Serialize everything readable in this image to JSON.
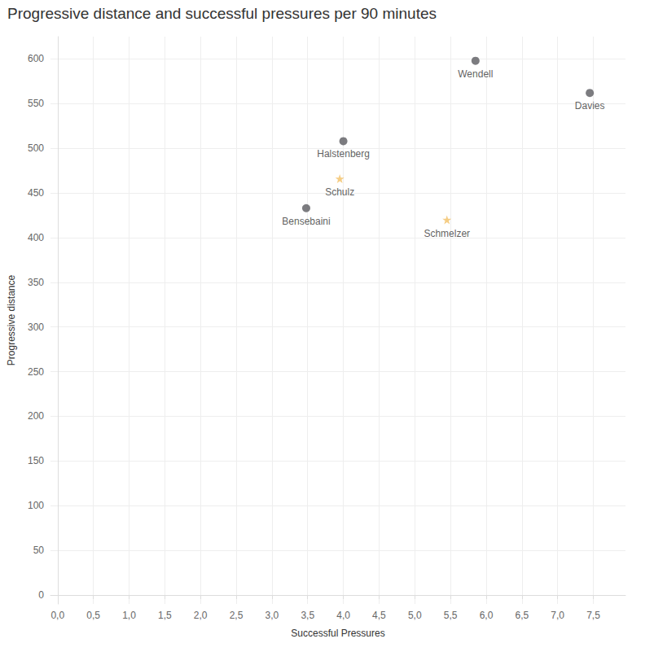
{
  "chart_data": {
    "type": "scatter",
    "title": "Progressive distance and successful pressures per 90 minutes",
    "x_label": "Successful Pressures",
    "y_label": "Progressive distance",
    "xlim": [
      -0.1,
      7.95
    ],
    "xticks": [
      {
        "value": 0,
        "label": "0,0"
      },
      {
        "value": 0.5,
        "label": "0,5"
      },
      {
        "value": 1,
        "label": "1,0"
      },
      {
        "value": 1.5,
        "label": "1,5"
      },
      {
        "value": 2,
        "label": "2,0"
      },
      {
        "value": 2.5,
        "label": "2,5"
      },
      {
        "value": 3,
        "label": "3,0"
      },
      {
        "value": 3.5,
        "label": "3,5"
      },
      {
        "value": 4,
        "label": "4,0"
      },
      {
        "value": 4.5,
        "label": "4,5"
      },
      {
        "value": 5,
        "label": "5,0"
      },
      {
        "value": 5.5,
        "label": "5,5"
      },
      {
        "value": 6,
        "label": "6,0"
      },
      {
        "value": 6.5,
        "label": "6,5"
      },
      {
        "value": 7,
        "label": "7,0"
      },
      {
        "value": 7.5,
        "label": "7,5"
      }
    ],
    "ylim": [
      -10,
      625
    ],
    "yticks": [
      0,
      50,
      100,
      150,
      200,
      250,
      300,
      350,
      400,
      450,
      500,
      550,
      600
    ],
    "grid": true,
    "series": [
      {
        "marker": "circle",
        "color": "#5b5b60",
        "labels": [
          "Wendell",
          "Davies",
          "Halstenberg",
          "Bensebaini"
        ],
        "x": [
          5.85,
          7.45,
          4.0,
          3.48
        ],
        "y": [
          598,
          562,
          508,
          433
        ]
      },
      {
        "marker": "star",
        "color": "#f2c066",
        "labels": [
          "Schulz",
          "Schmelzer"
        ],
        "x": [
          3.95,
          5.45
        ],
        "y": [
          466,
          420
        ]
      }
    ]
  }
}
